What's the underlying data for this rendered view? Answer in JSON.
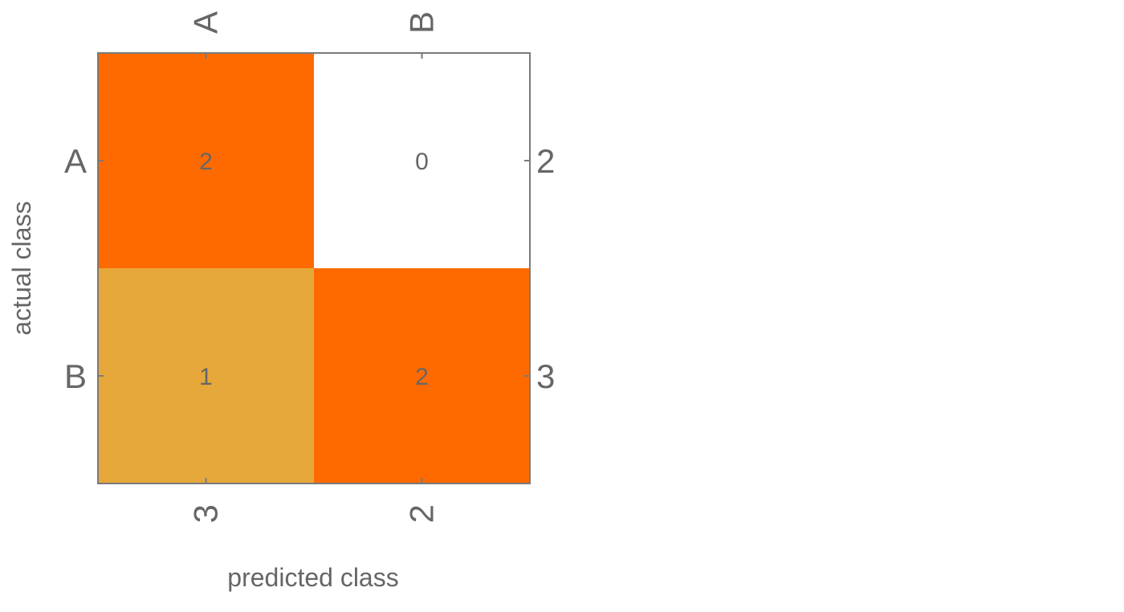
{
  "chart_data": {
    "type": "heatmap",
    "title": "",
    "xlabel": "predicted class",
    "ylabel": "actual class",
    "x_categories": [
      "A",
      "B"
    ],
    "y_categories": [
      "A",
      "B"
    ],
    "values": [
      [
        2,
        0
      ],
      [
        1,
        2
      ]
    ],
    "column_totals": [
      3,
      2
    ],
    "row_totals": [
      2,
      3
    ],
    "colors": {
      "high": "#ff6a00",
      "mid": "#e6a83a",
      "zero": "#ffffff"
    },
    "grid": false
  }
}
